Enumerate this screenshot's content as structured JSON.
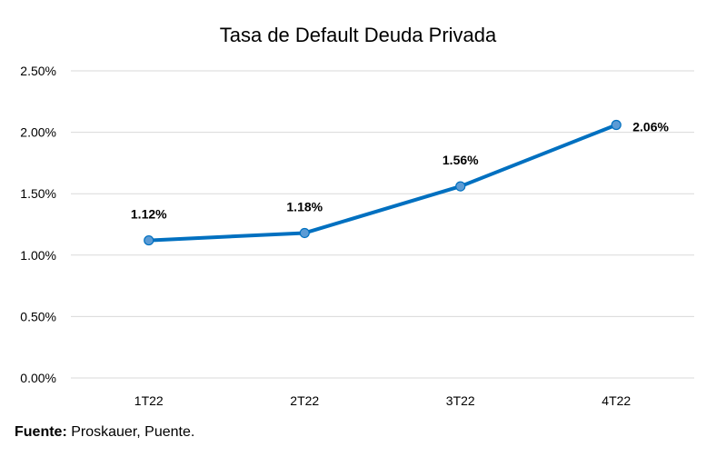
{
  "chart_data": {
    "type": "line",
    "title": "Tasa de Default Deuda Privada",
    "categories": [
      "1T22",
      "2T22",
      "3T22",
      "4T22"
    ],
    "series": [
      {
        "values": [
          1.12,
          1.18,
          1.56,
          2.06
        ]
      }
    ],
    "data_labels": [
      "1.12%",
      "1.18%",
      "1.56%",
      "2.06%"
    ],
    "y_ticks": [
      0,
      0.5,
      1.0,
      1.5,
      2.0,
      2.5
    ],
    "y_tick_labels": [
      "0.00%",
      "0.50%",
      "1.00%",
      "1.50%",
      "2.00%",
      "2.50%"
    ],
    "ylim": [
      0,
      2.5
    ],
    "grid": true,
    "legend": "none",
    "colors": {
      "line": "#0070C0",
      "marker": "#5B9BD5",
      "grid": "#D9D9D9"
    }
  },
  "source": {
    "label": "Fuente:",
    "text": " Proskauer, Puente."
  }
}
